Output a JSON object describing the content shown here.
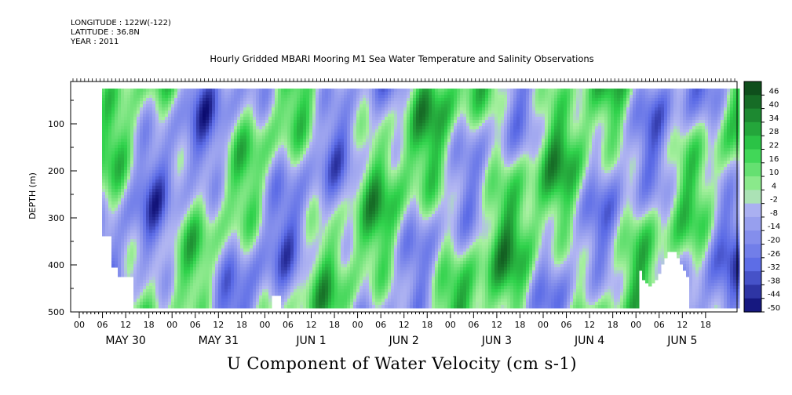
{
  "header": {
    "longitude": "LONGITUDE : 122W(-122)",
    "latitude": "LATITUDE : 36.8N",
    "year": "YEAR : 2011"
  },
  "chart_data": {
    "type": "heatmap",
    "title": "Hourly Gridded MBARI Mooring M1 Sea Water Temperature and Salinity Observations",
    "variable_label": "U Component of Water Velocity (cm s-1)",
    "ylabel": "DEPTH (m)",
    "ylim": [
      500,
      10
    ],
    "y_ticks": [
      100,
      200,
      300,
      400,
      500
    ],
    "y_inverted": true,
    "x_hour_ticks": [
      "00",
      "06",
      "12",
      "18",
      "00",
      "06",
      "12",
      "18",
      "00",
      "06",
      "12",
      "18",
      "00",
      "06",
      "12",
      "18",
      "00",
      "06",
      "12",
      "18",
      "00",
      "06",
      "12",
      "18",
      "00",
      "06",
      "12",
      "18"
    ],
    "x_day_labels": [
      "MAY 30",
      "MAY 31",
      "JUN  1",
      "JUN  2",
      "JUN  3",
      "JUN  4",
      "JUN  5"
    ],
    "colorbar": {
      "range": [
        -50,
        50
      ],
      "tick_labels": [
        "46",
        "40",
        "34",
        "28",
        "22",
        "16",
        "10",
        "4",
        "-2",
        "-8",
        "-14",
        "-20",
        "-26",
        "-32",
        "-38",
        "-44",
        "-50"
      ],
      "colors": {
        "positive_strong": "#0e4a1a",
        "positive_mid": "#2fd24b",
        "positive_weak": "#a8f0a0",
        "negative_weak": "#b4b8f2",
        "negative_mid": "#5a6ae6",
        "negative_strong": "#0a0a6e"
      }
    }
  }
}
